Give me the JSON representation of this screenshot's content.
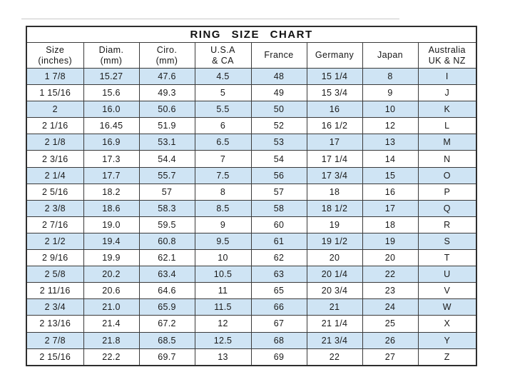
{
  "colors": {
    "row_shade_blue": "#cfe4f4",
    "grid_border": "#3a3a3a",
    "text": "#1d1d1d",
    "background": "#ffffff"
  },
  "chart_data": {
    "type": "table",
    "title": "RING SIZE CHART",
    "legend_position": "none",
    "grid": true,
    "striping": "alternating light-blue shading, first data row shaded",
    "columns": [
      {
        "id": "size-inches",
        "lines": [
          "Size",
          "(inches)"
        ]
      },
      {
        "id": "diam-mm",
        "lines": [
          "Diam.",
          "(mm)"
        ]
      },
      {
        "id": "ciro-mm",
        "lines": [
          "Ciro.",
          "(mm)"
        ]
      },
      {
        "id": "usa-ca",
        "lines": [
          "U.S.A",
          "& CA"
        ]
      },
      {
        "id": "france",
        "lines": [
          "France"
        ]
      },
      {
        "id": "germany",
        "lines": [
          "Germany"
        ]
      },
      {
        "id": "japan",
        "lines": [
          "Japan"
        ]
      },
      {
        "id": "australia-uk-nz",
        "lines": [
          "Australia",
          "UK & NZ"
        ]
      }
    ],
    "rows": [
      [
        "1 7/8",
        "15.27",
        "47.6",
        "4.5",
        "48",
        "15 1/4",
        "8",
        "I"
      ],
      [
        "1 15/16",
        "15.6",
        "49.3",
        "5",
        "49",
        "15 3/4",
        "9",
        "J"
      ],
      [
        "2",
        "16.0",
        "50.6",
        "5.5",
        "50",
        "16",
        "10",
        "K"
      ],
      [
        "2 1/16",
        "16.45",
        "51.9",
        "6",
        "52",
        "16 1/2",
        "12",
        "L"
      ],
      [
        "2 1/8",
        "16.9",
        "53.1",
        "6.5",
        "53",
        "17",
        "13",
        "M"
      ],
      [
        "2 3/16",
        "17.3",
        "54.4",
        "7",
        "54",
        "17 1/4",
        "14",
        "N"
      ],
      [
        "2 1/4",
        "17.7",
        "55.7",
        "7.5",
        "56",
        "17 3/4",
        "15",
        "O"
      ],
      [
        "2 5/16",
        "18.2",
        "57",
        "8",
        "57",
        "18",
        "16",
        "P"
      ],
      [
        "2 3/8",
        "18.6",
        "58.3",
        "8.5",
        "58",
        "18 1/2",
        "17",
        "Q"
      ],
      [
        "2 7/16",
        "19.0",
        "59.5",
        "9",
        "60",
        "19",
        "18",
        "R"
      ],
      [
        "2 1/2",
        "19.4",
        "60.8",
        "9.5",
        "61",
        "19 1/2",
        "19",
        "S"
      ],
      [
        "2 9/16",
        "19.9",
        "62.1",
        "10",
        "62",
        "20",
        "20",
        "T"
      ],
      [
        "2 5/8",
        "20.2",
        "63.4",
        "10.5",
        "63",
        "20 1/4",
        "22",
        "U"
      ],
      [
        "2 11/16",
        "20.6",
        "64.6",
        "11",
        "65",
        "20 3/4",
        "23",
        "V"
      ],
      [
        "2 3/4",
        "21.0",
        "65.9",
        "11.5",
        "66",
        "21",
        "24",
        "W"
      ],
      [
        "2 13/16",
        "21.4",
        "67.2",
        "12",
        "67",
        "21 1/4",
        "25",
        "X"
      ],
      [
        "2 7/8",
        "21.8",
        "68.5",
        "12.5",
        "68",
        "21 3/4",
        "26",
        "Y"
      ],
      [
        "2 15/16",
        "22.2",
        "69.7",
        "13",
        "69",
        "22",
        "27",
        "Z"
      ]
    ]
  }
}
